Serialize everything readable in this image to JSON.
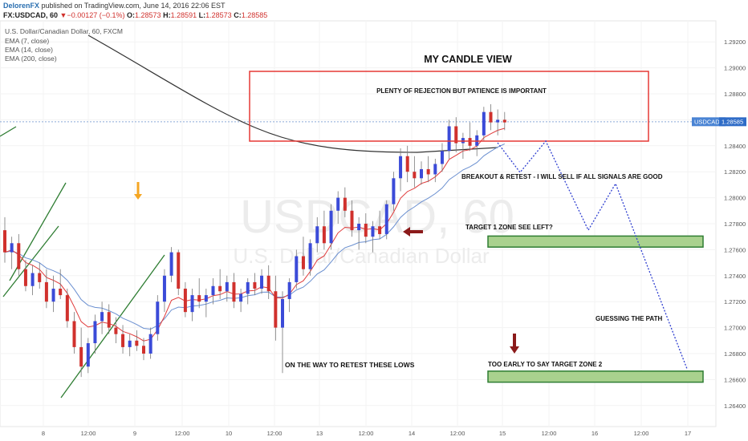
{
  "header": {
    "author": "DelorenFX",
    "published": " published on TradingView.com, June 14, 2016 22:06 EST",
    "symbol": "FX:USDCAD, 60",
    "change_arrow": "▼",
    "change": "−0.00127 (−0.1%)",
    "o_label": "O:",
    "o": "1.28573",
    "h_label": "H:",
    "h": "1.28591",
    "l_label": "L:",
    "l": "1.28573",
    "c_label": "C:",
    "c": "1.28585"
  },
  "legend": {
    "title": "U.S. Dollar/Canadian Dollar, 60, FXCM",
    "ema1": "EMA (7, close)",
    "ema2": "EMA (14, close)",
    "ema3": "EMA (200, close)"
  },
  "watermark": {
    "big": "USDCAD, 60",
    "small": "U.S. Dollar/Canadian Dollar"
  },
  "price_tag": {
    "symbol": "USDCAD",
    "value": "1.28585"
  },
  "annotations": {
    "title": "MY CANDLE VIEW",
    "rejection": "PLENTY OF REJECTION BUT PATIENCE IS IMPORTANT",
    "breakout": "BREAKOUT & RETEST -  I WILL SELL IF ALL SIGNALS ARE GOOD",
    "target1": "TARGET 1 ZONE SEE LEFT?",
    "guessing": "GUESSING THE PATH",
    "lows": "ON THE WAY TO RETEST THESE LOWS",
    "target2": "TOO EARLY TO SAY TARGET ZONE 2"
  },
  "colors": {
    "up": "#3b4bd8",
    "down": "#d0312d",
    "ema_fast": "#e03b3b",
    "ema_slow": "#6a8fd0",
    "ema200": "#333333",
    "zone_fill": "#a9d18e",
    "zone_border": "#2e7d32",
    "box": "#e53935",
    "arrow_dark": "#8b1a1a",
    "arrow_orange": "#f5a623"
  },
  "chart_data": {
    "type": "candlestick",
    "title": "U.S. Dollar/Canadian Dollar, 60, FXCM",
    "y_ticks": [
      "1.29200",
      "1.29000",
      "1.28800",
      "1.28600",
      "1.28400",
      "1.28200",
      "1.28000",
      "1.27800",
      "1.27600",
      "1.27400",
      "1.27200",
      "1.27000",
      "1.26800",
      "1.26600",
      "1.26400"
    ],
    "ylim": [
      1.263,
      1.293
    ],
    "x_ticks": [
      "8",
      "12:00",
      "9",
      "12:00",
      "10",
      "12:00",
      "13",
      "12:00",
      "14",
      "12:00",
      "15",
      "12:00",
      "16",
      "12:00",
      "17"
    ],
    "last_price": 1.28585,
    "candles": [
      [
        1.2775,
        1.2785,
        1.275,
        1.2758
      ],
      [
        1.2758,
        1.277,
        1.2745,
        1.2765
      ],
      [
        1.2765,
        1.2772,
        1.274,
        1.2745
      ],
      [
        1.2745,
        1.2752,
        1.2728,
        1.2732
      ],
      [
        1.2732,
        1.2748,
        1.2725,
        1.2742
      ],
      [
        1.2742,
        1.275,
        1.273,
        1.2735
      ],
      [
        1.2735,
        1.2745,
        1.2715,
        1.272
      ],
      [
        1.272,
        1.274,
        1.2712,
        1.273
      ],
      [
        1.273,
        1.2745,
        1.2722,
        1.2725
      ],
      [
        1.2725,
        1.273,
        1.27,
        1.2705
      ],
      [
        1.2705,
        1.2712,
        1.268,
        1.2685
      ],
      [
        1.2685,
        1.27,
        1.2662,
        1.267
      ],
      [
        1.267,
        1.2692,
        1.2665,
        1.2688
      ],
      [
        1.2688,
        1.271,
        1.268,
        1.2705
      ],
      [
        1.2705,
        1.272,
        1.2695,
        1.2712
      ],
      [
        1.2712,
        1.2718,
        1.2695,
        1.27
      ],
      [
        1.27,
        1.2708,
        1.2688,
        1.2695
      ],
      [
        1.2695,
        1.2702,
        1.268,
        1.2685
      ],
      [
        1.2685,
        1.2695,
        1.2678,
        1.269
      ],
      [
        1.269,
        1.2698,
        1.2682,
        1.2686
      ],
      [
        1.2686,
        1.2692,
        1.2675,
        1.268
      ],
      [
        1.268,
        1.27,
        1.2676,
        1.2695
      ],
      [
        1.2695,
        1.2725,
        1.269,
        1.272
      ],
      [
        1.272,
        1.2745,
        1.2712,
        1.274
      ],
      [
        1.274,
        1.2762,
        1.2735,
        1.2758
      ],
      [
        1.2758,
        1.276,
        1.2725,
        1.273
      ],
      [
        1.273,
        1.2735,
        1.2708,
        1.2712
      ],
      [
        1.2712,
        1.273,
        1.2705,
        1.2725
      ],
      [
        1.2725,
        1.2738,
        1.2715,
        1.272
      ],
      [
        1.272,
        1.273,
        1.2708,
        1.2725
      ],
      [
        1.2725,
        1.2738,
        1.2718,
        1.2732
      ],
      [
        1.2732,
        1.2745,
        1.2722,
        1.2728
      ],
      [
        1.2728,
        1.274,
        1.272,
        1.2735
      ],
      [
        1.2735,
        1.2742,
        1.2715,
        1.272
      ],
      [
        1.272,
        1.273,
        1.2712,
        1.2726
      ],
      [
        1.2726,
        1.2738,
        1.2718,
        1.2735
      ],
      [
        1.2735,
        1.2742,
        1.2725,
        1.273
      ],
      [
        1.273,
        1.2745,
        1.2726,
        1.274
      ],
      [
        1.274,
        1.2748,
        1.2722,
        1.2728
      ],
      [
        1.2728,
        1.274,
        1.269,
        1.27
      ],
      [
        1.27,
        1.2728,
        1.2665,
        1.2722
      ],
      [
        1.2722,
        1.2738,
        1.2712,
        1.2735
      ],
      [
        1.2735,
        1.276,
        1.273,
        1.2755
      ],
      [
        1.2755,
        1.277,
        1.274,
        1.2745
      ],
      [
        1.2745,
        1.2768,
        1.274,
        1.2765
      ],
      [
        1.2765,
        1.2785,
        1.2758,
        1.2778
      ],
      [
        1.2778,
        1.279,
        1.276,
        1.2765
      ],
      [
        1.2765,
        1.2795,
        1.276,
        1.279
      ],
      [
        1.279,
        1.2805,
        1.278,
        1.28
      ],
      [
        1.28,
        1.2808,
        1.2785,
        1.279
      ],
      [
        1.279,
        1.2798,
        1.277,
        1.2775
      ],
      [
        1.2775,
        1.2785,
        1.276,
        1.278
      ],
      [
        1.278,
        1.2788,
        1.2765,
        1.277
      ],
      [
        1.277,
        1.2782,
        1.2758,
        1.2778
      ],
      [
        1.2778,
        1.279,
        1.2768,
        1.2772
      ],
      [
        1.2772,
        1.2798,
        1.2768,
        1.2795
      ],
      [
        1.2795,
        1.282,
        1.279,
        1.2815
      ],
      [
        1.2815,
        1.2838,
        1.2805,
        1.2832
      ],
      [
        1.2832,
        1.284,
        1.2812,
        1.282
      ],
      [
        1.282,
        1.2832,
        1.2808,
        1.2815
      ],
      [
        1.2815,
        1.2828,
        1.281,
        1.2822
      ],
      [
        1.2822,
        1.2832,
        1.2812,
        1.2818
      ],
      [
        1.2818,
        1.283,
        1.2812,
        1.2826
      ],
      [
        1.2826,
        1.2842,
        1.282,
        1.2836
      ],
      [
        1.2836,
        1.286,
        1.283,
        1.2855
      ],
      [
        1.2855,
        1.2862,
        1.2835,
        1.2842
      ],
      [
        1.2842,
        1.285,
        1.283,
        1.2846
      ],
      [
        1.2846,
        1.2858,
        1.2836,
        1.284
      ],
      [
        1.284,
        1.2852,
        1.2832,
        1.2848
      ],
      [
        1.2848,
        1.287,
        1.2844,
        1.2866
      ],
      [
        1.2866,
        1.2872,
        1.2852,
        1.2858
      ],
      [
        1.2858,
        1.2868,
        1.2848,
        1.286
      ],
      [
        1.286,
        1.2866,
        1.2852,
        1.2858
      ]
    ],
    "zones": [
      {
        "label": "TARGET 1 ZONE SEE LEFT?",
        "y_top": 1.27705,
        "y_bottom": 1.2762
      },
      {
        "label": "TOO EARLY TO SAY TARGET ZONE 2",
        "y_top": 1.26665,
        "y_bottom": 1.2658
      }
    ]
  }
}
